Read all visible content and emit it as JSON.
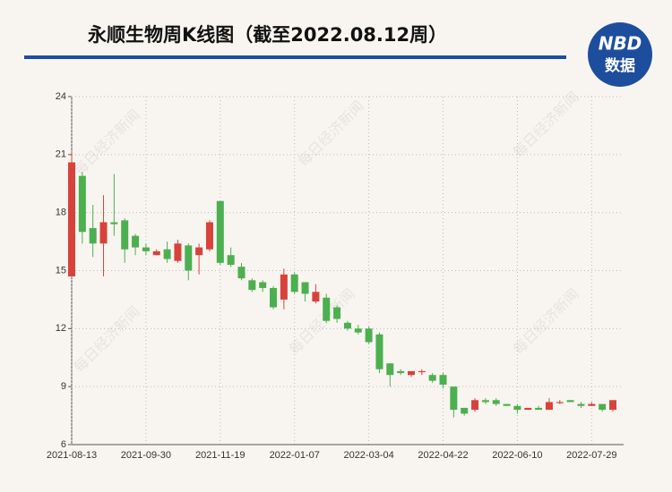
{
  "chart_data": {
    "type": "candlestick",
    "title": "永顺生物周K线图（截至2022.08.12周）",
    "logo": {
      "top": "NBD",
      "bottom": "数据"
    },
    "watermark": "每日经济新闻",
    "categories": [
      "2021-08-13",
      null,
      null,
      null,
      null,
      null,
      null,
      "2021-09-30",
      null,
      null,
      null,
      null,
      null,
      null,
      "2021-11-19",
      null,
      null,
      null,
      null,
      null,
      null,
      "2022-01-07",
      null,
      null,
      null,
      null,
      null,
      null,
      "2022-03-04",
      null,
      null,
      null,
      null,
      null,
      null,
      "2022-04-22",
      null,
      null,
      null,
      null,
      null,
      null,
      "2022-06-10",
      null,
      null,
      null,
      null,
      null,
      null,
      "2022-07-29",
      null,
      null
    ],
    "open": [
      14.7,
      19.9,
      17.2,
      16.4,
      17.5,
      17.6,
      16.8,
      16.2,
      15.8,
      16.1,
      15.5,
      16.3,
      15.8,
      16.1,
      18.6,
      15.8,
      15.2,
      14.5,
      14.4,
      14.1,
      13.5,
      14.8,
      14.4,
      13.4,
      13.6,
      13.1,
      12.3,
      12.0,
      12.0,
      11.7,
      10.2,
      9.8,
      9.6,
      9.8,
      9.6,
      9.6,
      9.0,
      7.9,
      7.8,
      8.3,
      8.3,
      8.1,
      8.0,
      7.8,
      7.9,
      7.8,
      8.2,
      8.3,
      8.1,
      8.0,
      8.1,
      7.8
    ],
    "close": [
      20.6,
      17.0,
      16.4,
      17.5,
      17.4,
      16.1,
      16.2,
      16.0,
      16.0,
      15.6,
      16.4,
      15.0,
      16.2,
      17.5,
      15.4,
      15.3,
      14.6,
      14.0,
      14.1,
      13.1,
      14.8,
      13.9,
      13.8,
      13.9,
      12.4,
      12.5,
      12.0,
      11.8,
      11.3,
      9.9,
      9.6,
      9.7,
      9.8,
      9.8,
      9.3,
      9.1,
      7.8,
      7.6,
      8.3,
      8.2,
      8.1,
      8.0,
      7.8,
      7.9,
      7.8,
      8.2,
      8.2,
      8.2,
      8.0,
      8.1,
      7.8,
      8.3
    ],
    "high": [
      21.2,
      20.1,
      18.4,
      18.9,
      20.0,
      17.7,
      16.9,
      16.4,
      16.1,
      16.5,
      16.6,
      16.4,
      16.4,
      17.6,
      18.6,
      16.2,
      15.4,
      14.6,
      14.5,
      14.2,
      15.1,
      14.9,
      14.4,
      14.3,
      13.8,
      13.2,
      12.4,
      12.2,
      12.1,
      11.8,
      10.2,
      9.9,
      9.8,
      9.9,
      9.7,
      9.7,
      9.0,
      7.9,
      8.4,
      8.4,
      8.4,
      8.1,
      8.1,
      7.9,
      8.0,
      8.4,
      8.3,
      8.3,
      8.2,
      8.2,
      8.1,
      8.3
    ],
    "low": [
      14.6,
      16.4,
      15.7,
      14.7,
      16.8,
      15.4,
      15.8,
      15.8,
      15.8,
      15.4,
      15.4,
      14.5,
      14.8,
      16.0,
      15.3,
      15.2,
      14.5,
      13.9,
      13.9,
      13.0,
      13.0,
      13.8,
      13.4,
      13.3,
      12.3,
      12.3,
      11.9,
      11.7,
      11.2,
      9.7,
      9.0,
      9.6,
      9.5,
      9.6,
      9.2,
      8.9,
      7.4,
      7.5,
      7.7,
      8.1,
      8.0,
      8.0,
      7.6,
      7.8,
      7.8,
      7.8,
      8.1,
      8.2,
      7.9,
      8.0,
      7.7,
      7.7
    ],
    "up_color": "#d8423c",
    "down_color": "#4caf50",
    "ylim": [
      6,
      24
    ],
    "yticks": [
      6,
      9,
      12,
      15,
      18,
      21,
      24
    ],
    "grid": true
  }
}
